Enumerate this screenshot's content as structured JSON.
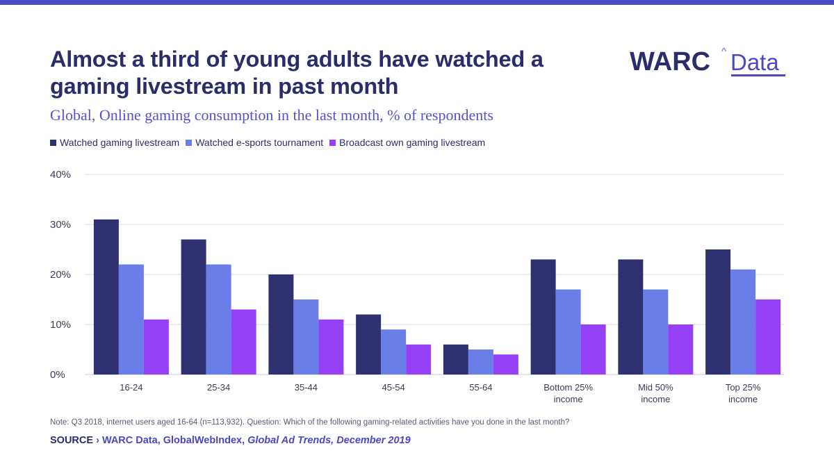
{
  "header": {
    "title": "Almost a third of young adults have watched a gaming livestream in past month",
    "subtitle": "Global, Online gaming consumption in the last month, % of respondents"
  },
  "logo": {
    "brand": "WARC",
    "caret": "^",
    "product": "Data"
  },
  "colors": {
    "accent": "#4a48c4",
    "navy": "#2b2d6b",
    "series1": "#2e3070",
    "series2": "#6b7ee8",
    "series3": "#9540f5",
    "grid": "#d8d8f0"
  },
  "chart_data": {
    "type": "bar",
    "categories": [
      [
        "16-24"
      ],
      [
        "25-34"
      ],
      [
        "35-44"
      ],
      [
        "45-54"
      ],
      [
        "55-64"
      ],
      [
        "Bottom 25%",
        "income"
      ],
      [
        "Mid 50%",
        "income"
      ],
      [
        "Top 25%",
        "income"
      ]
    ],
    "series": [
      {
        "name": "Watched gaming livestream",
        "color": "#2e3070",
        "values": [
          31,
          27,
          20,
          12,
          6,
          23,
          23,
          25
        ]
      },
      {
        "name": "Watched e-sports tournament",
        "color": "#6b7ee8",
        "values": [
          22,
          22,
          15,
          9,
          5,
          17,
          17,
          21
        ]
      },
      {
        "name": "Broadcast own gaming livestream",
        "color": "#9540f5",
        "values": [
          11,
          13,
          11,
          6,
          4,
          10,
          10,
          15
        ]
      }
    ],
    "ylim": [
      0,
      40
    ],
    "yticks": [
      0,
      10,
      20,
      30,
      40
    ],
    "ytick_labels": [
      "0%",
      "10%",
      "20%",
      "30%",
      "40%"
    ],
    "title": "Almost a third of young adults have watched a gaming livestream in past month",
    "xlabel": "",
    "ylabel": "",
    "grid": true,
    "legend_position": "top-left"
  },
  "footer": {
    "note": "Note: Q3 2018, internet users aged 16-64 (n=113,932). Question: Which of the following gaming-related activities have you done in the last month?",
    "source_label": "SOURCE",
    "source_sep": " › ",
    "source_text": "WARC Data, GlobalWebIndex, ",
    "source_publication": "Global Ad Trends, December 2019"
  }
}
